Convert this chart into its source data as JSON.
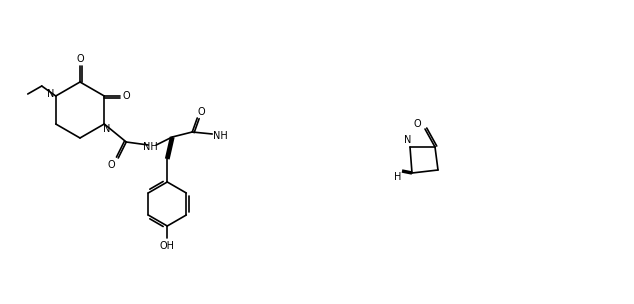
{
  "background": "#ffffff",
  "line_color": "#000000",
  "line_width": 1.2,
  "fig_width": 6.34,
  "fig_height": 3.04,
  "dpi": 100
}
